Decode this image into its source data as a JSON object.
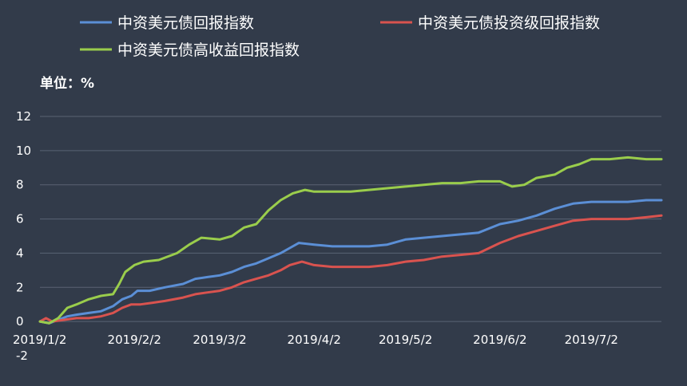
{
  "chart_data": {
    "type": "line",
    "title": "",
    "unit_label": "单位：%",
    "xlabel": "",
    "ylabel": "",
    "ylim": [
      -2,
      12
    ],
    "y_ticks": [
      "12",
      "10",
      "8",
      "6",
      "4",
      "2",
      "0",
      "-2"
    ],
    "y_tick_values": [
      12,
      10,
      8,
      6,
      4,
      2,
      0,
      -2
    ],
    "x_ticks": [
      "2019/1/2",
      "2019/2/2",
      "2019/3/2",
      "2019/4/2",
      "2019/5/2",
      "2019/6/2",
      "2019/7/2"
    ],
    "x_range": [
      "2019/1/2",
      "2019/7/25"
    ],
    "grid": true,
    "legend_position": "top",
    "series": [
      {
        "name": "中资美元债回报指数",
        "color": "#5b8fd6",
        "points": [
          [
            "2019/1/2",
            0.0
          ],
          [
            "2019/1/5",
            -0.1
          ],
          [
            "2019/1/8",
            0.1
          ],
          [
            "2019/1/11",
            0.3
          ],
          [
            "2019/1/14",
            0.4
          ],
          [
            "2019/1/18",
            0.5
          ],
          [
            "2019/1/22",
            0.6
          ],
          [
            "2019/1/26",
            0.9
          ],
          [
            "2019/1/29",
            1.3
          ],
          [
            "2019/2/1",
            1.5
          ],
          [
            "2019/2/3",
            1.8
          ],
          [
            "2019/2/7",
            1.8
          ],
          [
            "2019/2/12",
            2.0
          ],
          [
            "2019/2/18",
            2.2
          ],
          [
            "2019/2/22",
            2.5
          ],
          [
            "2019/2/26",
            2.6
          ],
          [
            "2019/3/2",
            2.7
          ],
          [
            "2019/3/6",
            2.9
          ],
          [
            "2019/3/10",
            3.2
          ],
          [
            "2019/3/14",
            3.4
          ],
          [
            "2019/3/18",
            3.7
          ],
          [
            "2019/3/22",
            4.0
          ],
          [
            "2019/3/25",
            4.3
          ],
          [
            "2019/3/28",
            4.6
          ],
          [
            "2019/4/2",
            4.5
          ],
          [
            "2019/4/8",
            4.4
          ],
          [
            "2019/4/14",
            4.4
          ],
          [
            "2019/4/20",
            4.4
          ],
          [
            "2019/4/26",
            4.5
          ],
          [
            "2019/5/2",
            4.8
          ],
          [
            "2019/5/8",
            4.9
          ],
          [
            "2019/5/14",
            5.0
          ],
          [
            "2019/5/20",
            5.1
          ],
          [
            "2019/5/26",
            5.2
          ],
          [
            "2019/6/2",
            5.7
          ],
          [
            "2019/6/8",
            5.9
          ],
          [
            "2019/6/14",
            6.2
          ],
          [
            "2019/6/20",
            6.6
          ],
          [
            "2019/6/26",
            6.9
          ],
          [
            "2019/7/2",
            7.0
          ],
          [
            "2019/7/8",
            7.0
          ],
          [
            "2019/7/14",
            7.0
          ],
          [
            "2019/7/20",
            7.1
          ],
          [
            "2019/7/25",
            7.1
          ]
        ]
      },
      {
        "name": "中资美元债投资级回报指数",
        "color": "#d9534f",
        "points": [
          [
            "2019/1/2",
            0.0
          ],
          [
            "2019/1/4",
            0.2
          ],
          [
            "2019/1/6",
            0.0
          ],
          [
            "2019/1/10",
            0.1
          ],
          [
            "2019/1/14",
            0.2
          ],
          [
            "2019/1/18",
            0.2
          ],
          [
            "2019/1/22",
            0.3
          ],
          [
            "2019/1/26",
            0.5
          ],
          [
            "2019/1/29",
            0.8
          ],
          [
            "2019/2/1",
            1.0
          ],
          [
            "2019/2/4",
            1.0
          ],
          [
            "2019/2/8",
            1.1
          ],
          [
            "2019/2/12",
            1.2
          ],
          [
            "2019/2/18",
            1.4
          ],
          [
            "2019/2/22",
            1.6
          ],
          [
            "2019/2/26",
            1.7
          ],
          [
            "2019/3/2",
            1.8
          ],
          [
            "2019/3/6",
            2.0
          ],
          [
            "2019/3/10",
            2.3
          ],
          [
            "2019/3/14",
            2.5
          ],
          [
            "2019/3/18",
            2.7
          ],
          [
            "2019/3/22",
            3.0
          ],
          [
            "2019/3/25",
            3.3
          ],
          [
            "2019/3/29",
            3.5
          ],
          [
            "2019/4/2",
            3.3
          ],
          [
            "2019/4/8",
            3.2
          ],
          [
            "2019/4/14",
            3.2
          ],
          [
            "2019/4/20",
            3.2
          ],
          [
            "2019/4/26",
            3.3
          ],
          [
            "2019/5/2",
            3.5
          ],
          [
            "2019/5/8",
            3.6
          ],
          [
            "2019/5/14",
            3.8
          ],
          [
            "2019/5/20",
            3.9
          ],
          [
            "2019/5/26",
            4.0
          ],
          [
            "2019/6/2",
            4.6
          ],
          [
            "2019/6/8",
            5.0
          ],
          [
            "2019/6/14",
            5.3
          ],
          [
            "2019/6/20",
            5.6
          ],
          [
            "2019/6/26",
            5.9
          ],
          [
            "2019/7/2",
            6.0
          ],
          [
            "2019/7/8",
            6.0
          ],
          [
            "2019/7/14",
            6.0
          ],
          [
            "2019/7/20",
            6.1
          ],
          [
            "2019/7/25",
            6.2
          ]
        ]
      },
      {
        "name": "中资美元债高收益回报指数",
        "color": "#9acd4c",
        "points": [
          [
            "2019/1/2",
            0.0
          ],
          [
            "2019/1/5",
            -0.1
          ],
          [
            "2019/1/8",
            0.2
          ],
          [
            "2019/1/11",
            0.8
          ],
          [
            "2019/1/14",
            1.0
          ],
          [
            "2019/1/18",
            1.3
          ],
          [
            "2019/1/22",
            1.5
          ],
          [
            "2019/1/26",
            1.6
          ],
          [
            "2019/1/28",
            2.2
          ],
          [
            "2019/1/30",
            2.9
          ],
          [
            "2019/2/2",
            3.3
          ],
          [
            "2019/2/5",
            3.5
          ],
          [
            "2019/2/10",
            3.6
          ],
          [
            "2019/2/16",
            4.0
          ],
          [
            "2019/2/20",
            4.5
          ],
          [
            "2019/2/24",
            4.9
          ],
          [
            "2019/3/2",
            4.8
          ],
          [
            "2019/3/6",
            5.0
          ],
          [
            "2019/3/10",
            5.5
          ],
          [
            "2019/3/14",
            5.7
          ],
          [
            "2019/3/18",
            6.5
          ],
          [
            "2019/3/22",
            7.1
          ],
          [
            "2019/3/26",
            7.5
          ],
          [
            "2019/3/30",
            7.7
          ],
          [
            "2019/4/2",
            7.6
          ],
          [
            "2019/4/8",
            7.6
          ],
          [
            "2019/4/14",
            7.6
          ],
          [
            "2019/4/20",
            7.7
          ],
          [
            "2019/4/26",
            7.8
          ],
          [
            "2019/5/2",
            7.9
          ],
          [
            "2019/5/8",
            8.0
          ],
          [
            "2019/5/14",
            8.1
          ],
          [
            "2019/5/20",
            8.1
          ],
          [
            "2019/5/26",
            8.2
          ],
          [
            "2019/6/2",
            8.2
          ],
          [
            "2019/6/6",
            7.9
          ],
          [
            "2019/6/10",
            8.0
          ],
          [
            "2019/6/14",
            8.4
          ],
          [
            "2019/6/20",
            8.6
          ],
          [
            "2019/6/24",
            9.0
          ],
          [
            "2019/6/28",
            9.2
          ],
          [
            "2019/7/2",
            9.5
          ],
          [
            "2019/7/8",
            9.5
          ],
          [
            "2019/7/14",
            9.6
          ],
          [
            "2019/7/20",
            9.5
          ],
          [
            "2019/7/25",
            9.5
          ]
        ]
      }
    ]
  }
}
